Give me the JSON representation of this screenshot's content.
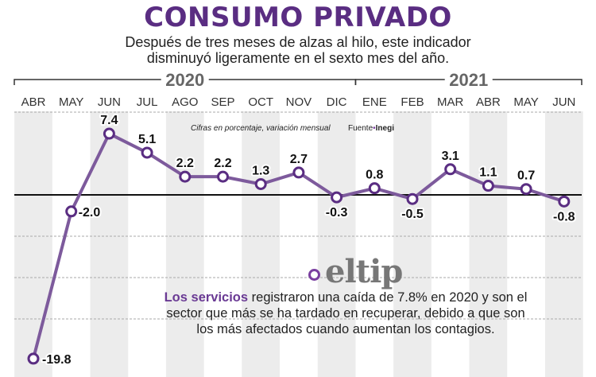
{
  "header": {
    "title": "CONSUMO PRIVADO",
    "subtitle_line1": "Después de tres meses de alzas al hilo, este indicador",
    "subtitle_line2": "disminuyó ligeramente en el sexto mes del año."
  },
  "chart_data": {
    "type": "line",
    "year_groups": [
      {
        "label": "2020",
        "months": 9
      },
      {
        "label": "2021",
        "months": 6
      }
    ],
    "categories": [
      "ABR",
      "MAY",
      "JUN",
      "JUL",
      "AGO",
      "SEP",
      "OCT",
      "NOV",
      "DIC",
      "ENE",
      "FEB",
      "MAR",
      "ABR",
      "MAY",
      "JUN"
    ],
    "values": [
      -19.8,
      -2.0,
      7.4,
      5.1,
      2.2,
      2.2,
      1.3,
      2.7,
      -0.3,
      0.8,
      -0.5,
      3.1,
      1.1,
      0.7,
      -0.8
    ],
    "labels": [
      "-19.8",
      "-2.0",
      "7.4",
      "5.1",
      "2.2",
      "2.2",
      "1.3",
      "2.7",
      "-0.3",
      "0.8",
      "-0.5",
      "3.1",
      "1.1",
      "0.7",
      "-0.8"
    ],
    "ylim": [
      -20,
      10
    ],
    "annotation": "Cifras en porcentaje, variación mensual",
    "source_label": "Fuente",
    "source": "Inegi",
    "line_color": "#7d5a9c",
    "grid": true
  },
  "logo": "eltip",
  "tip": {
    "highlight": "Los servicios",
    "text": " registraron una caída de 7.8% en 2020 y son el sector que más se ha tardado en recuperar, debido a que son los más afectados cuando aumentan los contagios."
  }
}
